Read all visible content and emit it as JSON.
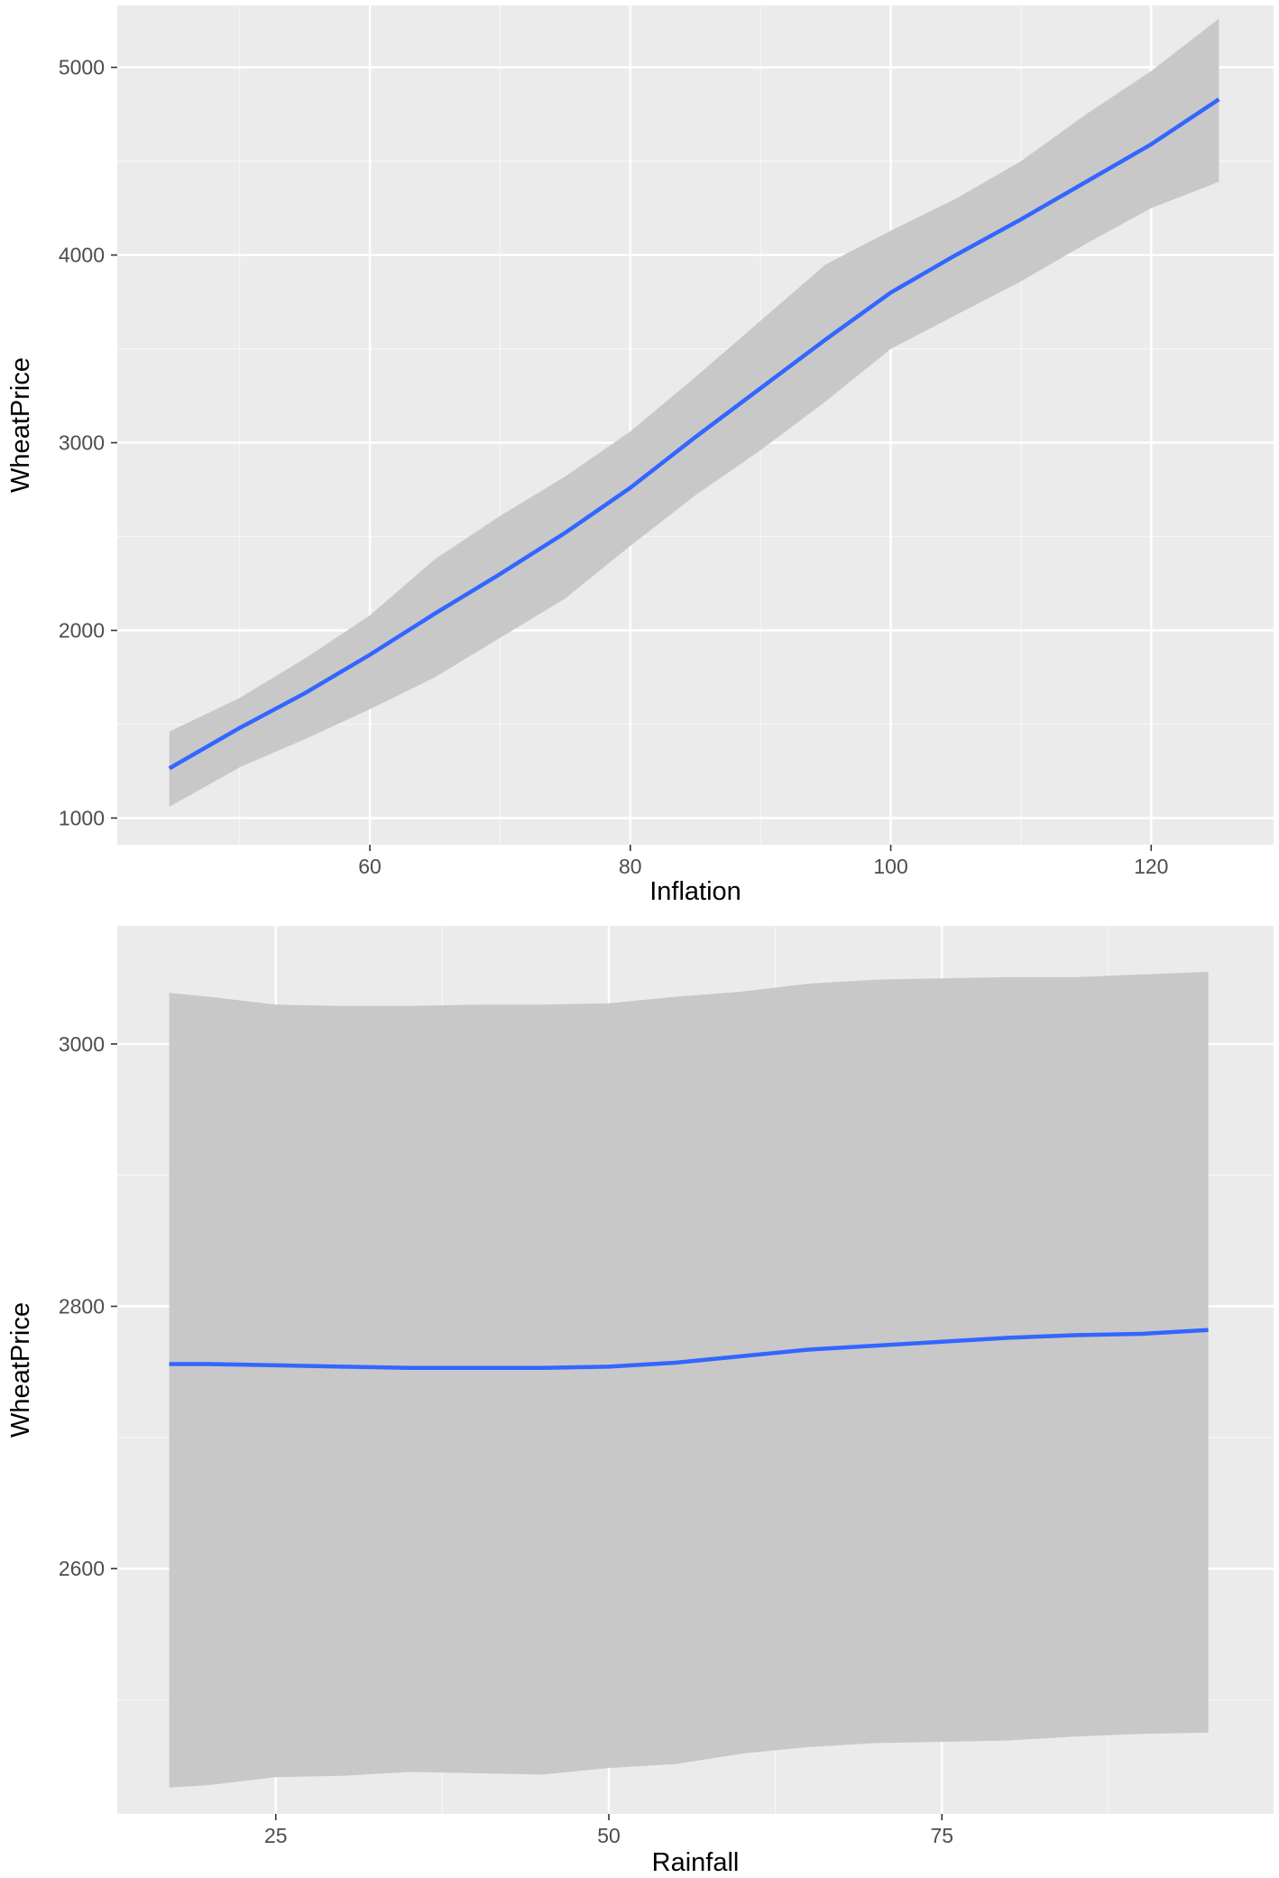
{
  "chart_data": [
    {
      "type": "line",
      "xlabel": "Inflation",
      "ylabel": "WheatPrice",
      "xlim": [
        40.6,
        129.4
      ],
      "ylim": [
        858,
        5330
      ],
      "x_ticks": [
        60,
        80,
        100,
        120
      ],
      "x_minor": [
        50,
        70,
        90,
        110
      ],
      "y_ticks": [
        1000,
        2000,
        3000,
        4000,
        5000
      ],
      "y_minor": [
        1500,
        2500,
        3500,
        4500
      ],
      "grid": true,
      "series": [
        {
          "x": [
            44.6,
            50,
            55,
            60,
            65,
            70,
            75,
            80,
            85,
            90,
            95,
            100,
            105,
            110,
            115,
            120,
            125.2
          ],
          "y": [
            1265,
            1480,
            1665,
            1870,
            2090,
            2300,
            2520,
            2760,
            3030,
            3290,
            3550,
            3800,
            4000,
            4190,
            4390,
            4590,
            4830
          ],
          "ymin": [
            1060,
            1270,
            1420,
            1580,
            1750,
            1960,
            2170,
            2450,
            2720,
            2960,
            3220,
            3500,
            3680,
            3860,
            4060,
            4250,
            4390
          ],
          "ymax": [
            1460,
            1640,
            1850,
            2080,
            2380,
            2610,
            2820,
            3060,
            3350,
            3650,
            3950,
            4130,
            4300,
            4500,
            4750,
            4980,
            5260
          ]
        }
      ]
    },
    {
      "type": "line",
      "xlabel": "Rainfall",
      "ylabel": "WheatPrice",
      "xlim": [
        13.1,
        99.9
      ],
      "ylim": [
        2413,
        3090
      ],
      "x_ticks": [
        25,
        50,
        75
      ],
      "x_minor": [
        37.5,
        62.5,
        87.5
      ],
      "y_ticks": [
        2600,
        2800,
        3000
      ],
      "y_minor": [
        2500,
        2700,
        2900
      ],
      "grid": true,
      "series": [
        {
          "x": [
            17,
            20,
            25,
            30,
            35,
            40,
            45,
            50,
            55,
            60,
            65,
            70,
            75,
            80,
            85,
            90,
            95
          ],
          "y": [
            2756,
            2756,
            2755,
            2754,
            2753,
            2753,
            2753,
            2754,
            2757,
            2762,
            2767,
            2770,
            2773,
            2776,
            2778,
            2779,
            2782
          ],
          "ymin": [
            2433,
            2435,
            2441,
            2442,
            2445,
            2444,
            2443,
            2448,
            2451,
            2459,
            2464,
            2467,
            2468,
            2469,
            2472,
            2474,
            2475
          ],
          "ymax": [
            3039,
            3036,
            3030,
            3029,
            3029,
            3030,
            3030,
            3031,
            3036,
            3040,
            3046,
            3049,
            3050,
            3051,
            3051,
            3053,
            3055
          ]
        }
      ]
    }
  ]
}
